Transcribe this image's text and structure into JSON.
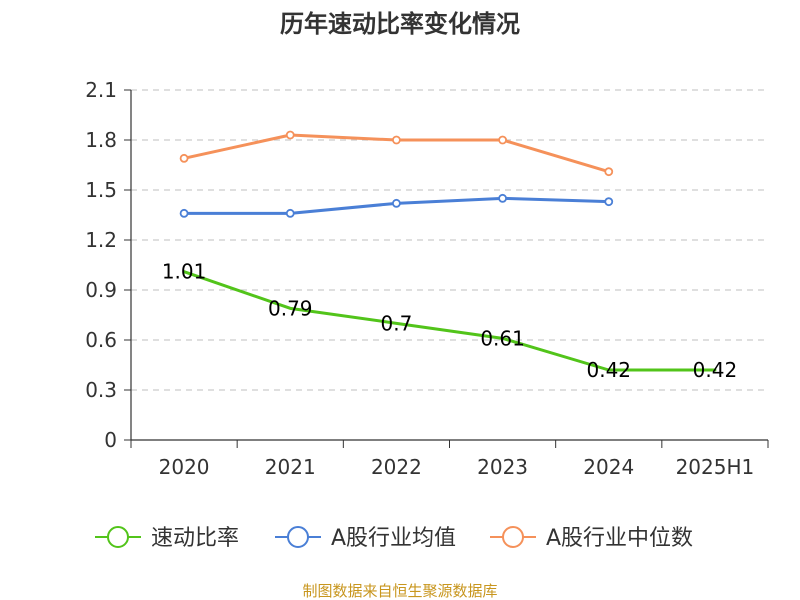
{
  "chart_data": {
    "type": "line",
    "title": "历年速动比率变化情况",
    "xlabel": "",
    "ylabel": "",
    "categories": [
      "2020",
      "2021",
      "2022",
      "2023",
      "2024",
      "2025H1"
    ],
    "ylim": [
      0,
      2.1
    ],
    "yticks": [
      "0",
      "0.3",
      "0.6",
      "0.9",
      "1.2",
      "1.5",
      "1.8",
      "2.1"
    ],
    "grid": true,
    "legend_position": "bottom",
    "series": [
      {
        "name": "速动比率",
        "color": "#52c41a",
        "values": [
          1.01,
          0.79,
          0.7,
          0.61,
          0.42,
          0.42
        ],
        "labels": [
          "1.01",
          "0.79",
          "0.7",
          "0.61",
          "0.42",
          "0.42"
        ],
        "show_markers": false
      },
      {
        "name": "A股行业均值",
        "color": "#4a7fd6",
        "values": [
          1.36,
          1.36,
          1.42,
          1.45,
          1.43,
          null
        ],
        "show_markers": true
      },
      {
        "name": "A股行业中位数",
        "color": "#f5915a",
        "values": [
          1.69,
          1.83,
          1.8,
          1.8,
          1.61,
          null
        ],
        "show_markers": true
      }
    ]
  },
  "footer": "制图数据来自恒生聚源数据库"
}
